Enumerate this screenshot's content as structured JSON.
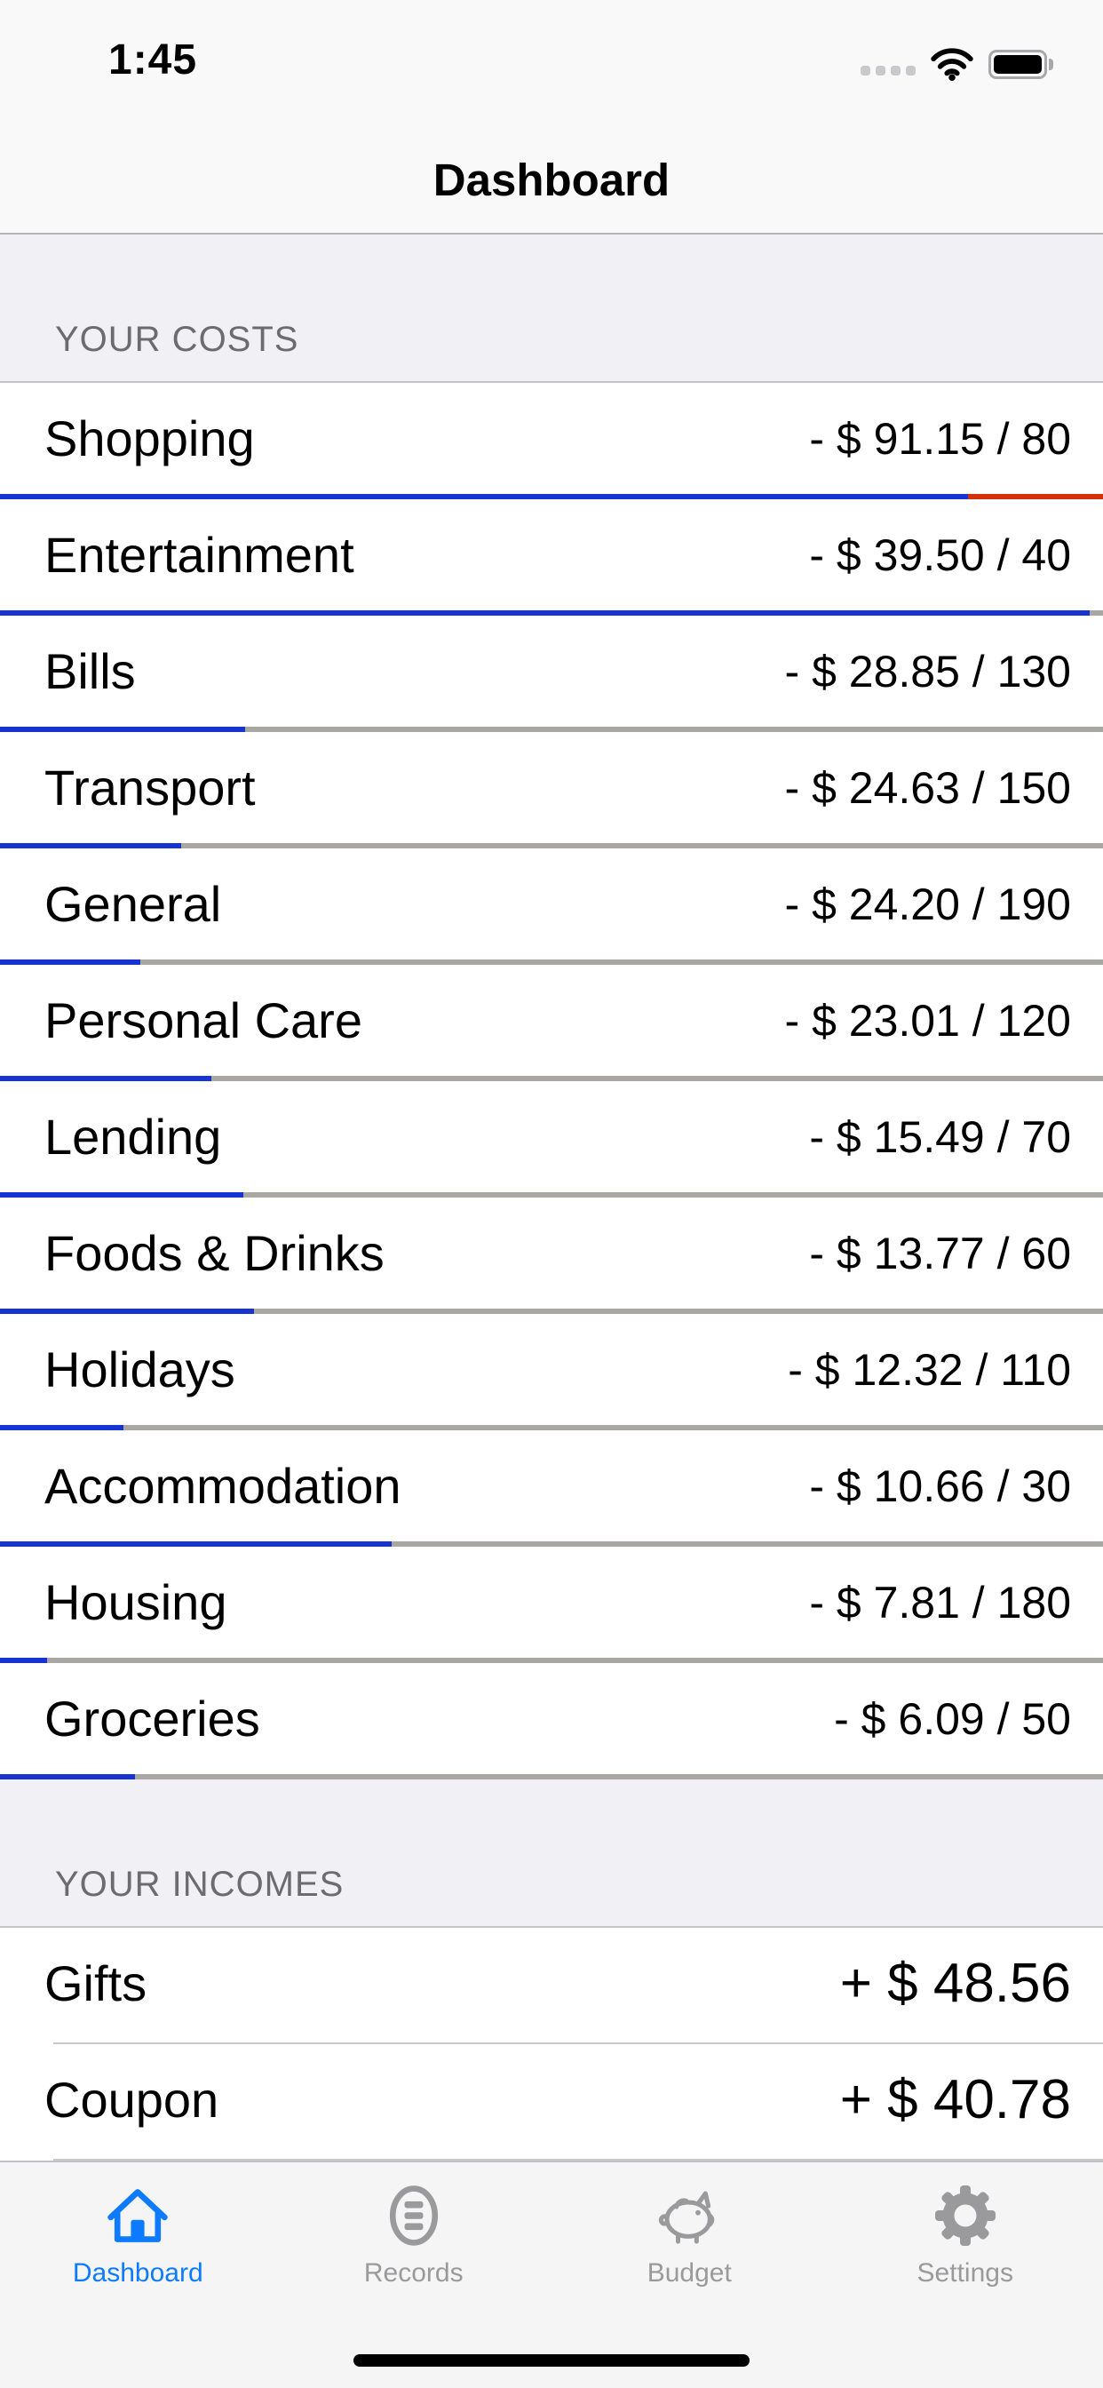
{
  "status_bar": {
    "time": "1:45",
    "cellular_dots": 4,
    "icons": [
      "cellular-signal-icon",
      "wifi-icon",
      "battery-icon"
    ],
    "battery_level": "full"
  },
  "nav": {
    "title": "Dashboard"
  },
  "costs_section": {
    "header": "YOUR COSTS",
    "rows": [
      {
        "label": "Shopping",
        "amount": "- $ 91.15 / 80",
        "spent": 91.15,
        "budget": 80,
        "blue_pct": 87.8,
        "red_pct": 12.2
      },
      {
        "label": "Entertainment",
        "amount": "- $ 39.50 / 40",
        "spent": 39.5,
        "budget": 40,
        "blue_pct": 98.8,
        "red_pct": 0
      },
      {
        "label": "Bills",
        "amount": "- $ 28.85 / 130",
        "spent": 28.85,
        "budget": 130,
        "blue_pct": 22.2,
        "red_pct": 0
      },
      {
        "label": "Transport",
        "amount": "- $ 24.63 / 150",
        "spent": 24.63,
        "budget": 150,
        "blue_pct": 16.4,
        "red_pct": 0
      },
      {
        "label": "General",
        "amount": "- $ 24.20 / 190",
        "spent": 24.2,
        "budget": 190,
        "blue_pct": 12.7,
        "red_pct": 0
      },
      {
        "label": "Personal Care",
        "amount": "- $ 23.01 / 120",
        "spent": 23.01,
        "budget": 120,
        "blue_pct": 19.2,
        "red_pct": 0
      },
      {
        "label": "Lending",
        "amount": "- $ 15.49 / 70",
        "spent": 15.49,
        "budget": 70,
        "blue_pct": 22.1,
        "red_pct": 0
      },
      {
        "label": "Foods & Drinks",
        "amount": "- $ 13.77 / 60",
        "spent": 13.77,
        "budget": 60,
        "blue_pct": 23.0,
        "red_pct": 0
      },
      {
        "label": "Holidays",
        "amount": "- $ 12.32 / 110",
        "spent": 12.32,
        "budget": 110,
        "blue_pct": 11.2,
        "red_pct": 0
      },
      {
        "label": "Accommodation",
        "amount": "- $ 10.66 / 30",
        "spent": 10.66,
        "budget": 30,
        "blue_pct": 35.5,
        "red_pct": 0
      },
      {
        "label": "Housing",
        "amount": "- $ 7.81 / 180",
        "spent": 7.81,
        "budget": 180,
        "blue_pct": 4.3,
        "red_pct": 0
      },
      {
        "label": "Groceries",
        "amount": "- $ 6.09 / 50",
        "spent": 6.09,
        "budget": 50,
        "blue_pct": 12.2,
        "red_pct": 0
      }
    ]
  },
  "incomes_section": {
    "header": "YOUR INCOMES",
    "rows": [
      {
        "label": "Gifts",
        "amount": "+ $ 48.56"
      },
      {
        "label": "Coupon",
        "amount": "+ $ 40.78"
      }
    ]
  },
  "tab_bar": {
    "items": [
      {
        "label": "Dashboard",
        "icon": "home-icon",
        "active": true
      },
      {
        "label": "Records",
        "icon": "records-list-icon",
        "active": false
      },
      {
        "label": "Budget",
        "icon": "piggy-bank-icon",
        "active": false
      },
      {
        "label": "Settings",
        "icon": "gear-icon",
        "active": false
      }
    ]
  },
  "colors": {
    "bar_fill_blue": "#1733D2",
    "bar_overflow_red": "#D2310B",
    "bar_track_gray": "#A9A7A4",
    "tab_active_blue": "#0C7BFF",
    "tab_inactive_gray": "#9A9A9C",
    "section_header_bg": "#F0F0F5",
    "tabbar_bg": "#F5F5F5"
  }
}
